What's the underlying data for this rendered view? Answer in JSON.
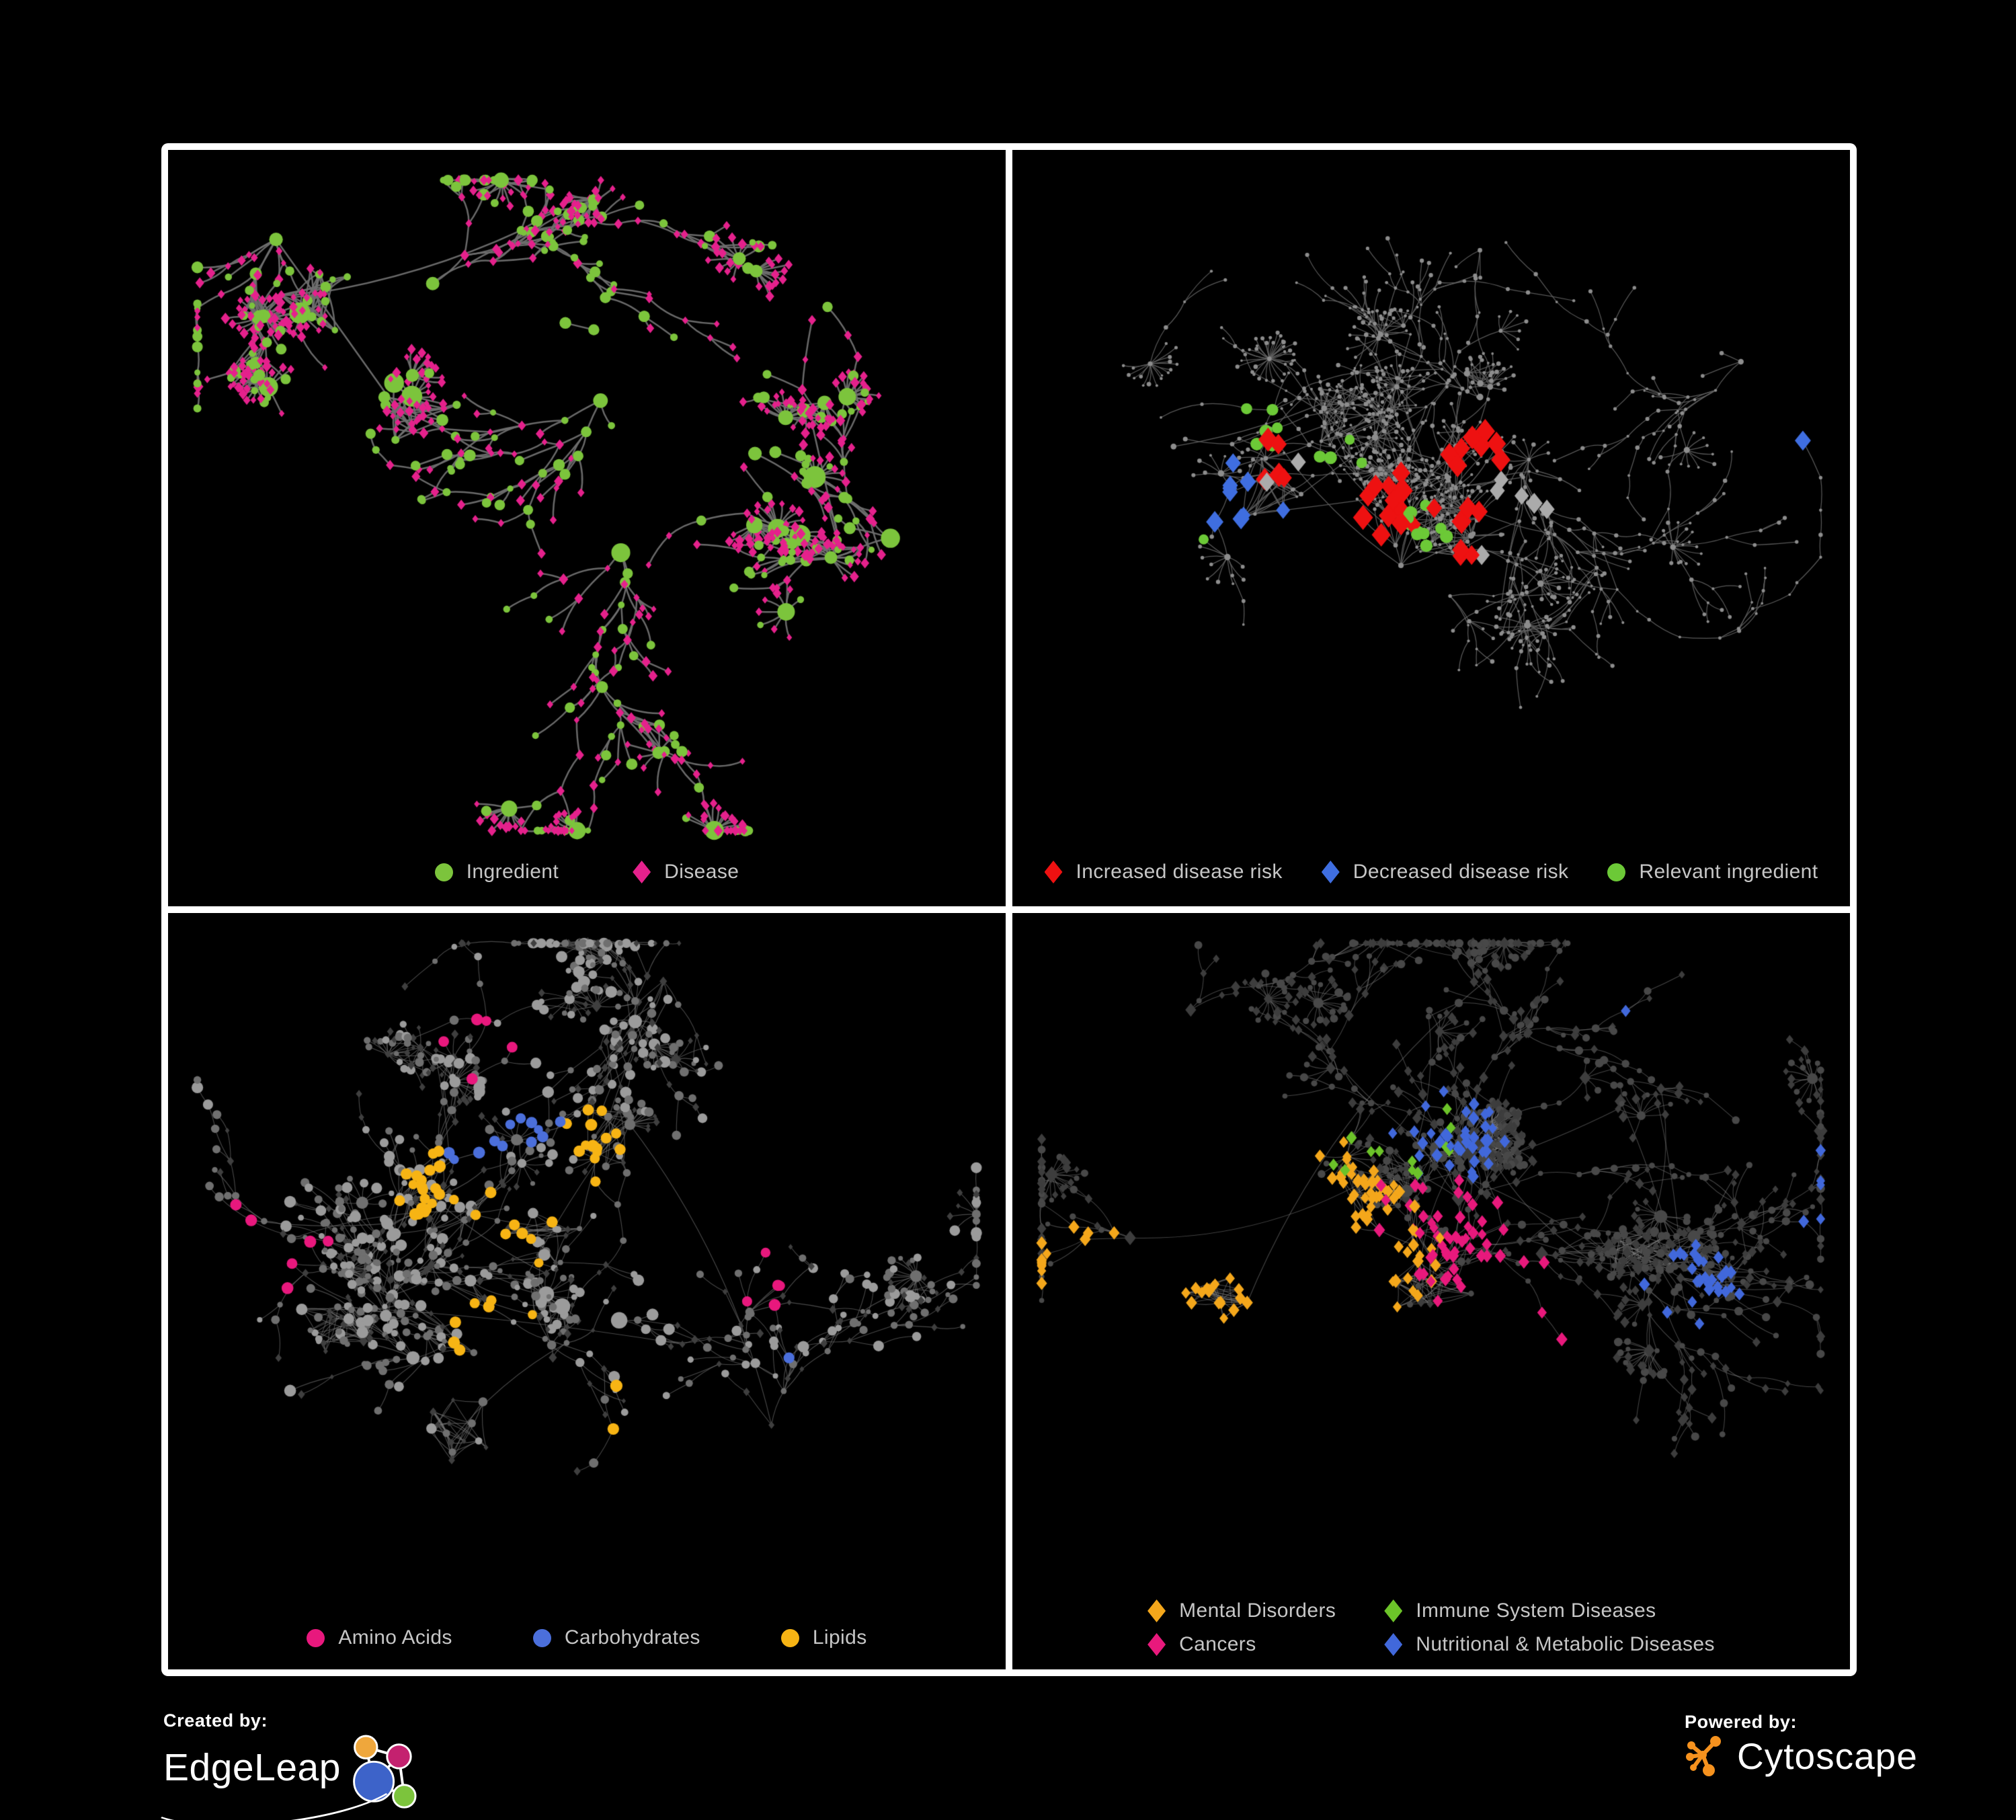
{
  "page": {
    "background": "#000000",
    "frame_color": "#ffffff",
    "panel_background": "#000000",
    "legend_text_color": "#c6c6c6"
  },
  "panels": [
    {
      "name": "ingredient-disease-network",
      "type": "network",
      "legend": [
        {
          "shape": "circle",
          "color": "#7CC43C",
          "label": "Ingredient"
        },
        {
          "shape": "diamond",
          "color": "#E5218C",
          "label": "Disease"
        }
      ],
      "gen": {
        "seed": 7,
        "nodes": 500,
        "clusters": 8,
        "fans": 26,
        "hairballs": 2,
        "hb_centers": [
          [
            0.18,
            0.2
          ],
          [
            0.3,
            0.35
          ]
        ],
        "ymax": 0.9,
        "edge": {
          "color": "#6f6f6f",
          "width": 2.5,
          "alpha": 0.95,
          "curve": 0.3
        },
        "kinds": [
          {
            "shape": "circle",
            "color": "#7CC43C",
            "rmin": 4.5,
            "rmax": 9,
            "share": 0.44
          },
          {
            "shape": "diamond",
            "color": "#E5218C",
            "rmin": 4,
            "rmax": 7
          }
        ],
        "leaf_kind": 1,
        "hub_kind": 0
      }
    },
    {
      "name": "disease-risk-network",
      "type": "network",
      "legend": [
        {
          "shape": "diamond",
          "color": "#EE1111",
          "label": "Increased disease risk"
        },
        {
          "shape": "diamond",
          "color": "#3F6EE0",
          "label": "Decreased disease risk"
        },
        {
          "shape": "circle",
          "color": "#6CC937",
          "label": "Relevant ingredient"
        }
      ],
      "gen": {
        "seed": 19,
        "nodes": 650,
        "clusters": 9,
        "fans": 34,
        "hairballs": 3,
        "hb_centers": [
          [
            0.4,
            0.35
          ],
          [
            0.52,
            0.5
          ],
          [
            0.3,
            0.45
          ]
        ],
        "ymax": 0.9,
        "edge": {
          "color": "#626262",
          "width": 1.25,
          "alpha": 0.9,
          "curve": 0.3
        },
        "base": [
          {
            "shape": "circle",
            "color": "#8d8d8d",
            "rmin": 1.8,
            "rmax": 3.4
          }
        ],
        "highlights": [
          {
            "shape": "diamond",
            "color": "#EE1111",
            "r": 13,
            "count": 33,
            "spread": 0.12,
            "centers": [
              [
                0.33,
                0.42
              ],
              [
                0.46,
                0.48
              ],
              [
                0.56,
                0.52
              ],
              [
                0.38,
                0.58
              ],
              [
                0.55,
                0.38
              ],
              [
                0.78,
                0.88
              ]
            ]
          },
          {
            "shape": "diamond",
            "color": "#3F6EE0",
            "r": 12,
            "count": 10,
            "spread": 0.07,
            "centers": [
              [
                0.28,
                0.46
              ],
              [
                0.9,
                0.36
              ]
            ]
          },
          {
            "shape": "circle",
            "color": "#6CC937",
            "r": 8.5,
            "count": 24,
            "spread": 0.16,
            "centers": [
              [
                0.36,
                0.42
              ],
              [
                0.3,
                0.35
              ],
              [
                0.48,
                0.5
              ],
              [
                0.25,
                0.55
              ]
            ]
          },
          {
            "shape": "diamond",
            "color": "#ABABAB",
            "r": 12,
            "count": 8,
            "spread": 0.18,
            "centers": [
              [
                0.33,
                0.45
              ],
              [
                0.52,
                0.55
              ],
              [
                0.6,
                0.45
              ]
            ]
          }
        ]
      }
    },
    {
      "name": "nutrient-class-network",
      "type": "network",
      "legend": [
        {
          "shape": "circle",
          "color": "#E8187D",
          "label": "Amino Acids"
        },
        {
          "shape": "circle",
          "color": "#4B6FDB",
          "label": "Carbohydrates"
        },
        {
          "shape": "circle",
          "color": "#F7B414",
          "label": "Lipids"
        }
      ],
      "gen": {
        "seed": 33,
        "nodes": 640,
        "clusters": 9,
        "fans": 30,
        "hairballs": 4,
        "hb_centers": [
          [
            0.2,
            0.55
          ],
          [
            0.45,
            0.42
          ],
          [
            0.52,
            0.3
          ],
          [
            0.35,
            0.68
          ]
        ],
        "ymax": 0.9,
        "edge": {
          "color": "#7a7a7a",
          "width": 1.1,
          "alpha": 0.6,
          "curve": 0.3
        },
        "base": [
          {
            "shape": "circle",
            "color": "#9b9b9b",
            "rmin": 4,
            "rmax": 9
          },
          {
            "shape": "circle",
            "color": "#6f6f6f",
            "rmin": 3.5,
            "rmax": 7
          },
          {
            "shape": "diamond",
            "color": "#3f3f3f",
            "rmin": 3,
            "rmax": 5.5
          }
        ],
        "highlights": [
          {
            "shape": "circle",
            "color": "#F7B414",
            "r": 8,
            "count": 52,
            "spread": 0.12,
            "centers": [
              [
                0.5,
                0.3
              ],
              [
                0.42,
                0.42
              ],
              [
                0.38,
                0.55
              ],
              [
                0.54,
                0.67
              ],
              [
                0.3,
                0.35
              ]
            ]
          },
          {
            "shape": "circle",
            "color": "#4B6FDB",
            "r": 8,
            "count": 13,
            "spread": 0.1,
            "centers": [
              [
                0.45,
                0.28
              ],
              [
                0.35,
                0.33
              ],
              [
                0.76,
                0.62
              ]
            ]
          },
          {
            "shape": "circle",
            "color": "#E8187D",
            "r": 8,
            "count": 16,
            "spread": 0.25,
            "centers": [
              [
                0.1,
                0.48
              ],
              [
                0.25,
                0.79
              ],
              [
                0.36,
                0.12
              ],
              [
                0.71,
                0.44
              ],
              [
                0.5,
                0.85
              ],
              [
                0.05,
                0.6
              ]
            ]
          }
        ]
      }
    },
    {
      "name": "disease-class-network",
      "type": "network",
      "legend": [
        {
          "shape": "diamond",
          "color": "#F4A71B",
          "label": "Mental Disorders"
        },
        {
          "shape": "diamond",
          "color": "#6CC329",
          "label": "Immune System Diseases"
        },
        {
          "shape": "diamond",
          "color": "#E8197C",
          "label": "Cancers"
        },
        {
          "shape": "diamond",
          "color": "#4168DB",
          "label": "Nutritional & Metabolic Diseases"
        }
      ],
      "gen": {
        "seed": 47,
        "nodes": 700,
        "clusters": 9,
        "fans": 32,
        "hairballs": 4,
        "hb_centers": [
          [
            0.45,
            0.35
          ],
          [
            0.5,
            0.5
          ],
          [
            0.25,
            0.5
          ],
          [
            0.75,
            0.45
          ]
        ],
        "ymax": 0.9,
        "edge": {
          "color": "#8a8a8a",
          "width": 1.05,
          "alpha": 0.5,
          "curve": 0.3
        },
        "base": [
          {
            "shape": "diamond",
            "color": "#3d3d3d",
            "rmin": 4,
            "rmax": 7
          },
          {
            "shape": "circle",
            "color": "#484848",
            "rmin": 3.5,
            "rmax": 6.5
          }
        ],
        "highlights": [
          {
            "shape": "diamond",
            "color": "#F4A71B",
            "r": 7.5,
            "count": 88,
            "spread": 0.09,
            "centers": [
              [
                0.25,
                0.5
              ],
              [
                0.32,
                0.55
              ],
              [
                0.2,
                0.6
              ],
              [
                0.35,
                0.45
              ],
              [
                0.15,
                0.55
              ]
            ]
          },
          {
            "shape": "diamond",
            "color": "#E8197C",
            "r": 7.5,
            "count": 55,
            "spread": 0.11,
            "centers": [
              [
                0.5,
                0.45
              ],
              [
                0.57,
                0.52
              ],
              [
                0.45,
                0.58
              ],
              [
                0.62,
                0.6
              ]
            ]
          },
          {
            "shape": "diamond",
            "color": "#4168DB",
            "r": 7.5,
            "count": 72,
            "spread": 0.13,
            "centers": [
              [
                0.82,
                0.5
              ],
              [
                0.88,
                0.18
              ],
              [
                0.72,
                0.12
              ],
              [
                0.63,
                0.82
              ],
              [
                0.35,
                0.8
              ],
              [
                0.52,
                0.3
              ],
              [
                0.95,
                0.35
              ]
            ]
          },
          {
            "shape": "diamond",
            "color": "#6CC329",
            "r": 7.5,
            "count": 12,
            "spread": 0.28,
            "centers": [
              [
                0.45,
                0.3
              ],
              [
                0.38,
                0.5
              ],
              [
                0.2,
                0.9
              ],
              [
                0.55,
                0.75
              ]
            ]
          }
        ]
      }
    }
  ],
  "footer": {
    "created_by": "Created by:",
    "edgeleap": "EdgeLeap",
    "powered_by": "Powered by:",
    "cytoscape": "Cytoscape",
    "cytoscape_color": "#F6921E",
    "edgeleap_node_colors": [
      "#EFA73C",
      "#C4216F",
      "#3D63C9",
      "#7CC43C"
    ]
  }
}
